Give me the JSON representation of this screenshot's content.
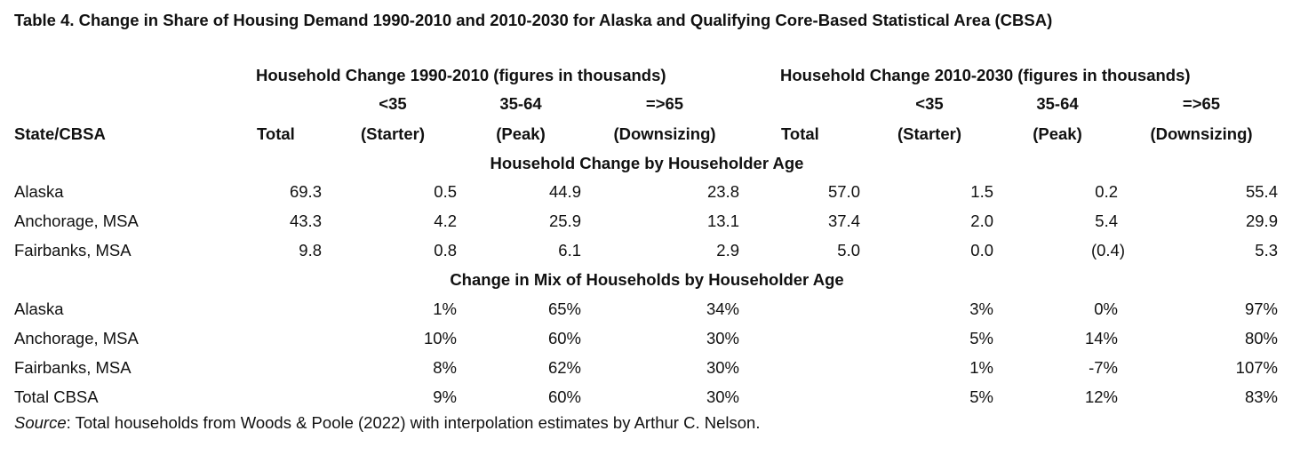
{
  "title": "Table 4. Change in Share of Housing Demand 1990-2010 and 2010-2030 for Alaska and Qualifying Core-Based Statistical Area (CBSA)",
  "headers": {
    "group1": "Household Change 1990-2010 (figures in thousands)",
    "group2": "Household Change 2010-2030 (figures in thousands)",
    "state_col": "State/CBSA",
    "total": "Total",
    "lt35": "<35",
    "starter": "(Starter)",
    "mid": "35-64",
    "peak": "(Peak)",
    "ge65": "=>65",
    "downsizing": "(Downsizing)"
  },
  "section1": {
    "title": "Household Change by Householder Age",
    "rows": [
      {
        "name": "Alaska",
        "v": [
          "69.3",
          "0.5",
          "44.9",
          "23.8",
          "57.0",
          "1.5",
          "0.2",
          "55.4"
        ]
      },
      {
        "name": "Anchorage, MSA",
        "v": [
          "43.3",
          "4.2",
          "25.9",
          "13.1",
          "37.4",
          "2.0",
          "5.4",
          "29.9"
        ]
      },
      {
        "name": "Fairbanks, MSA",
        "v": [
          "9.8",
          "0.8",
          "6.1",
          "2.9",
          "5.0",
          "0.0",
          "(0.4)",
          "5.3"
        ]
      }
    ]
  },
  "section2": {
    "title": "Change in Mix of Households by Householder Age",
    "rows": [
      {
        "name": "Alaska",
        "v": [
          "",
          "1%",
          "65%",
          "34%",
          "",
          "3%",
          "0%",
          "97%"
        ]
      },
      {
        "name": "Anchorage, MSA",
        "v": [
          "",
          "10%",
          "60%",
          "30%",
          "",
          "5%",
          "14%",
          "80%"
        ]
      },
      {
        "name": "Fairbanks, MSA",
        "v": [
          "",
          "8%",
          "62%",
          "30%",
          "",
          "1%",
          "-7%",
          "107%"
        ]
      },
      {
        "name": "Total CBSA",
        "v": [
          "",
          "9%",
          "60%",
          "30%",
          "",
          "5%",
          "12%",
          "83%"
        ]
      }
    ]
  },
  "source": {
    "label": "Source",
    "text": ": Total households from Woods & Poole (2022) with interpolation estimates by Arthur C. Nelson."
  }
}
